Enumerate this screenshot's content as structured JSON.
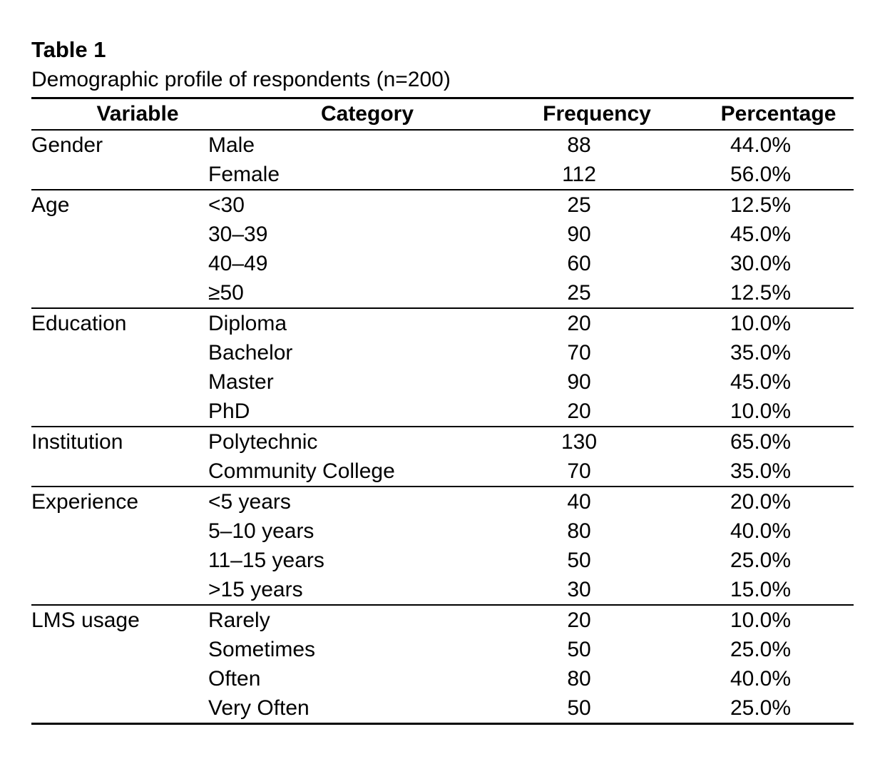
{
  "title": "Table 1",
  "caption": "Demographic profile of respondents (n=200)",
  "table": {
    "headers": [
      "Variable",
      "Category",
      "Frequency",
      "Percentage"
    ],
    "groups": [
      {
        "variable": "Gender",
        "rows": [
          {
            "category": "Male",
            "frequency": "88",
            "percentage": "44.0%"
          },
          {
            "category": "Female",
            "frequency": "112",
            "percentage": "56.0%"
          }
        ]
      },
      {
        "variable": "Age",
        "rows": [
          {
            "category": "<30",
            "frequency": "25",
            "percentage": "12.5%"
          },
          {
            "category": "30–39",
            "frequency": "90",
            "percentage": "45.0%"
          },
          {
            "category": "40–49",
            "frequency": "60",
            "percentage": "30.0%"
          },
          {
            "category": "≥50",
            "frequency": "25",
            "percentage": "12.5%"
          }
        ]
      },
      {
        "variable": "Education",
        "rows": [
          {
            "category": "Diploma",
            "frequency": "20",
            "percentage": "10.0%"
          },
          {
            "category": "Bachelor",
            "frequency": "70",
            "percentage": "35.0%"
          },
          {
            "category": "Master",
            "frequency": "90",
            "percentage": "45.0%"
          },
          {
            "category": "PhD",
            "frequency": "20",
            "percentage": "10.0%"
          }
        ]
      },
      {
        "variable": "Institution",
        "rows": [
          {
            "category": "Polytechnic",
            "frequency": "130",
            "percentage": "65.0%"
          },
          {
            "category": "Community College",
            "frequency": "70",
            "percentage": "35.0%"
          }
        ]
      },
      {
        "variable": "Experience",
        "rows": [
          {
            "category": "<5 years",
            "frequency": "40",
            "percentage": "20.0%"
          },
          {
            "category": "5–10 years",
            "frequency": "80",
            "percentage": "40.0%"
          },
          {
            "category": "11–15 years",
            "frequency": "50",
            "percentage": "25.0%"
          },
          {
            "category": ">15 years",
            "frequency": "30",
            "percentage": "15.0%"
          }
        ]
      },
      {
        "variable": "LMS usage",
        "rows": [
          {
            "category": "Rarely",
            "frequency": "20",
            "percentage": "10.0%"
          },
          {
            "category": "Sometimes",
            "frequency": "50",
            "percentage": "25.0%"
          },
          {
            "category": "Often",
            "frequency": "80",
            "percentage": "40.0%"
          },
          {
            "category": "Very Often",
            "frequency": "50",
            "percentage": "25.0%"
          }
        ]
      }
    ]
  }
}
